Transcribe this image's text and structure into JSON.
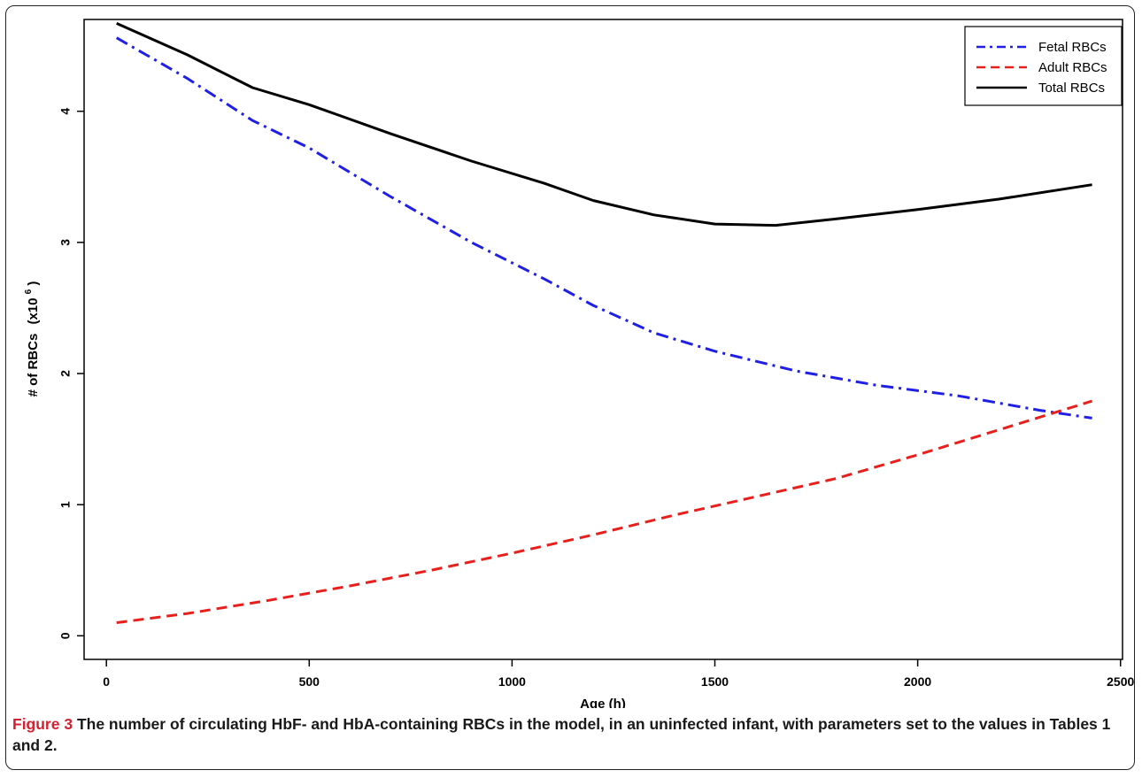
{
  "chart_data": {
    "type": "line",
    "xlabel": "Age (h)",
    "ylabel_main": "# of RBCs",
    "ylabel_unit": "(x10",
    "ylabel_exp": "6",
    "ylabel_close": ")",
    "xlim": [
      -55,
      2505
    ],
    "ylim": [
      -0.18,
      4.7
    ],
    "xticks": [
      0,
      500,
      1000,
      1500,
      2000,
      2500
    ],
    "xtick_labels": [
      "0",
      "500",
      "1000",
      "1500",
      "2000",
      "2500"
    ],
    "yticks": [
      0,
      1,
      2,
      3,
      4
    ],
    "ytick_labels": [
      "0",
      "1",
      "2",
      "3",
      "4"
    ],
    "grid": false,
    "legend_position": "top-right",
    "series": [
      {
        "name": "Fetal RBCs",
        "color": "#1f1fe6",
        "dash": "dot-dash",
        "x": [
          25,
          200,
          360,
          500,
          700,
          900,
          1080,
          1200,
          1350,
          1500,
          1700,
          1900,
          2100,
          2300,
          2430
        ],
        "y": [
          4.56,
          4.25,
          3.93,
          3.72,
          3.35,
          3.0,
          2.72,
          2.52,
          2.31,
          2.17,
          2.02,
          1.91,
          1.83,
          1.72,
          1.66
        ]
      },
      {
        "name": "Adult RBCs",
        "color": "#e8201d",
        "dash": "dashed",
        "x": [
          25,
          200,
          400,
          600,
          800,
          1000,
          1200,
          1400,
          1600,
          1800,
          2000,
          2200,
          2430
        ],
        "y": [
          0.1,
          0.17,
          0.27,
          0.38,
          0.5,
          0.63,
          0.77,
          0.92,
          1.06,
          1.2,
          1.38,
          1.57,
          1.79
        ]
      },
      {
        "name": "Total RBCs",
        "color": "#000000",
        "dash": "solid",
        "x": [
          25,
          200,
          360,
          500,
          700,
          900,
          1080,
          1200,
          1350,
          1500,
          1650,
          1800,
          2000,
          2200,
          2430
        ],
        "y": [
          4.67,
          4.43,
          4.18,
          4.05,
          3.83,
          3.62,
          3.45,
          3.32,
          3.21,
          3.14,
          3.13,
          3.18,
          3.25,
          3.33,
          3.44
        ]
      }
    ]
  },
  "caption": {
    "label": "Figure 3",
    "text": " The number of circulating HbF- and HbA-containing RBCs in the model, in an uninfected infant, with parameters set to the values in Tables 1 and 2."
  }
}
